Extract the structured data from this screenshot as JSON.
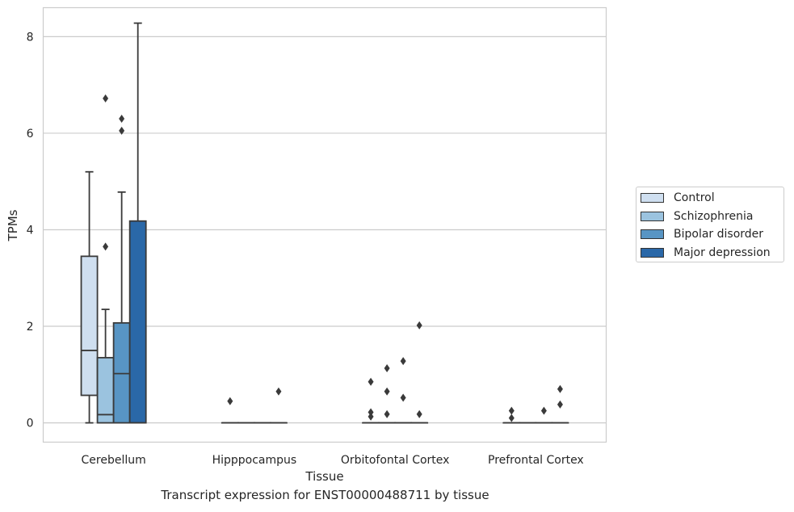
{
  "chart_data": {
    "type": "box",
    "title": "Transcript expression for ENST00000488711 by tissue",
    "xlabel": "Tissue",
    "ylabel": "TPMs",
    "ylim": [
      -0.4,
      8.6
    ],
    "yticks": [
      0,
      2,
      4,
      6,
      8
    ],
    "grid": "horizontal",
    "legend_position": "right",
    "categories": [
      "Cerebellum",
      "Hipppocampus",
      "Orbitofontal Cortex",
      "Prefrontal Cortex"
    ],
    "series": [
      {
        "name": "Control",
        "color": "#cfdff0",
        "boxes": [
          {
            "whislo": 0,
            "q1": 0.57,
            "med": 1.5,
            "q3": 3.45,
            "whishi": 5.2,
            "fliers": []
          },
          {
            "whislo": 0,
            "q1": 0,
            "med": 0,
            "q3": 0,
            "whishi": 0,
            "fliers": [
              0.45
            ]
          },
          {
            "whislo": 0,
            "q1": 0,
            "med": 0,
            "q3": 0,
            "whishi": 0,
            "fliers": [
              0.85,
              0.22,
              0.13
            ]
          },
          {
            "whislo": 0,
            "q1": 0,
            "med": 0,
            "q3": 0,
            "whishi": 0,
            "fliers": [
              0.25,
              0.1
            ]
          }
        ]
      },
      {
        "name": "Schizophrenia",
        "color": "#9bc3df",
        "boxes": [
          {
            "whislo": 0,
            "q1": 0,
            "med": 0.17,
            "q3": 1.35,
            "whishi": 2.35,
            "fliers": [
              3.65,
              6.72
            ]
          },
          {
            "whislo": 0,
            "q1": 0,
            "med": 0,
            "q3": 0,
            "whishi": 0,
            "fliers": []
          },
          {
            "whislo": 0,
            "q1": 0,
            "med": 0,
            "q3": 0,
            "whishi": 0,
            "fliers": [
              0.18,
              0.65,
              1.13
            ]
          },
          {
            "whislo": 0,
            "q1": 0,
            "med": 0,
            "q3": 0,
            "whishi": 0,
            "fliers": []
          }
        ]
      },
      {
        "name": "Bipolar disorder",
        "color": "#5895c4",
        "boxes": [
          {
            "whislo": 0,
            "q1": 0,
            "med": 1.02,
            "q3": 2.07,
            "whishi": 4.78,
            "fliers": [
              6.05,
              6.3
            ]
          },
          {
            "whislo": 0,
            "q1": 0,
            "med": 0,
            "q3": 0,
            "whishi": 0,
            "fliers": []
          },
          {
            "whislo": 0,
            "q1": 0,
            "med": 0,
            "q3": 0,
            "whishi": 0,
            "fliers": [
              0.52,
              1.28
            ]
          },
          {
            "whislo": 0,
            "q1": 0,
            "med": 0,
            "q3": 0,
            "whishi": 0,
            "fliers": [
              0.25
            ]
          }
        ]
      },
      {
        "name": "Major depression",
        "color": "#2a68a8",
        "boxes": [
          {
            "whislo": 0,
            "q1": 0,
            "med": 0,
            "q3": 4.18,
            "whishi": 8.28,
            "fliers": []
          },
          {
            "whislo": 0,
            "q1": 0,
            "med": 0,
            "q3": 0,
            "whishi": 0,
            "fliers": [
              0.65
            ]
          },
          {
            "whislo": 0,
            "q1": 0,
            "med": 0,
            "q3": 0,
            "whishi": 0,
            "fliers": [
              0.18,
              2.02
            ]
          },
          {
            "whislo": 0,
            "q1": 0,
            "med": 0,
            "q3": 0,
            "whishi": 0,
            "fliers": [
              0.38,
              0.7
            ]
          }
        ]
      }
    ]
  }
}
